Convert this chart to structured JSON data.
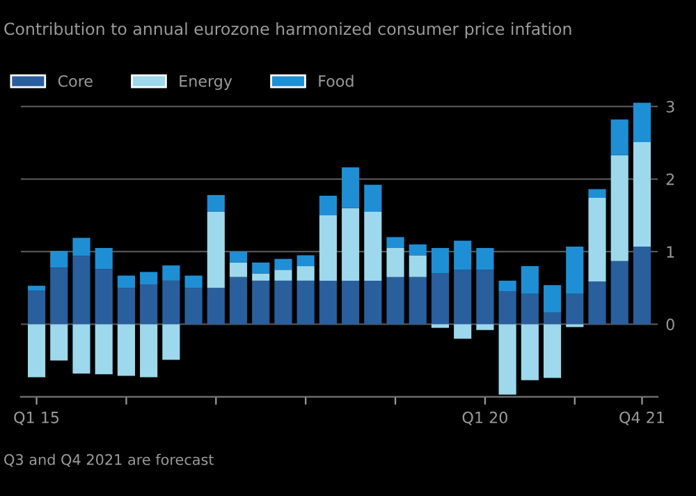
{
  "chart_data": {
    "type": "bar",
    "stacked": true,
    "title": "Contribution to annual eurozone harmonized consumer price infation",
    "categories": [
      "Q1 15",
      null,
      null,
      null,
      null,
      null,
      null,
      null,
      null,
      null,
      null,
      null,
      null,
      null,
      null,
      null,
      null,
      null,
      null,
      null,
      "Q1 20",
      null,
      null,
      null,
      null,
      null,
      null,
      "Q4 21"
    ],
    "series": [
      {
        "name": "Core",
        "color": "#2a5f9e",
        "values": [
          0.46,
          0.78,
          0.94,
          0.76,
          0.5,
          0.55,
          0.6,
          0.5,
          0.5,
          0.65,
          0.6,
          0.6,
          0.6,
          0.6,
          0.6,
          0.6,
          0.65,
          0.65,
          0.7,
          0.75,
          0.75,
          0.45,
          0.42,
          0.16,
          0.42,
          0.59,
          0.87,
          1.07
        ]
      },
      {
        "name": "Energy",
        "color": "#9dd8ec",
        "values": [
          -0.73,
          -0.5,
          -0.68,
          -0.69,
          -0.71,
          -0.73,
          -0.49,
          0,
          1.05,
          0.2,
          0.1,
          0.15,
          0.2,
          0.9,
          1.0,
          0.95,
          0.4,
          0.3,
          -0.05,
          -0.2,
          -0.08,
          -0.97,
          -0.77,
          -0.74,
          -0.04,
          1.15,
          1.46,
          1.44
        ]
      },
      {
        "name": "Food",
        "color": "#1e8fd5",
        "values": [
          0.07,
          0.23,
          0.25,
          0.29,
          0.17,
          0.17,
          0.21,
          0.17,
          0.23,
          0.15,
          0.15,
          0.15,
          0.15,
          0.27,
          0.56,
          0.37,
          0.15,
          0.15,
          0.35,
          0.4,
          0.3,
          0.15,
          0.38,
          0.38,
          0.65,
          0.12,
          0.49,
          0.54
        ]
      }
    ],
    "ylim": [
      -1,
      3.1
    ],
    "yticks": [
      0,
      1,
      2,
      3
    ],
    "grid": "y",
    "legend": "top left",
    "annotations": [
      "Q3 and Q4 2021 are forecast"
    ]
  }
}
